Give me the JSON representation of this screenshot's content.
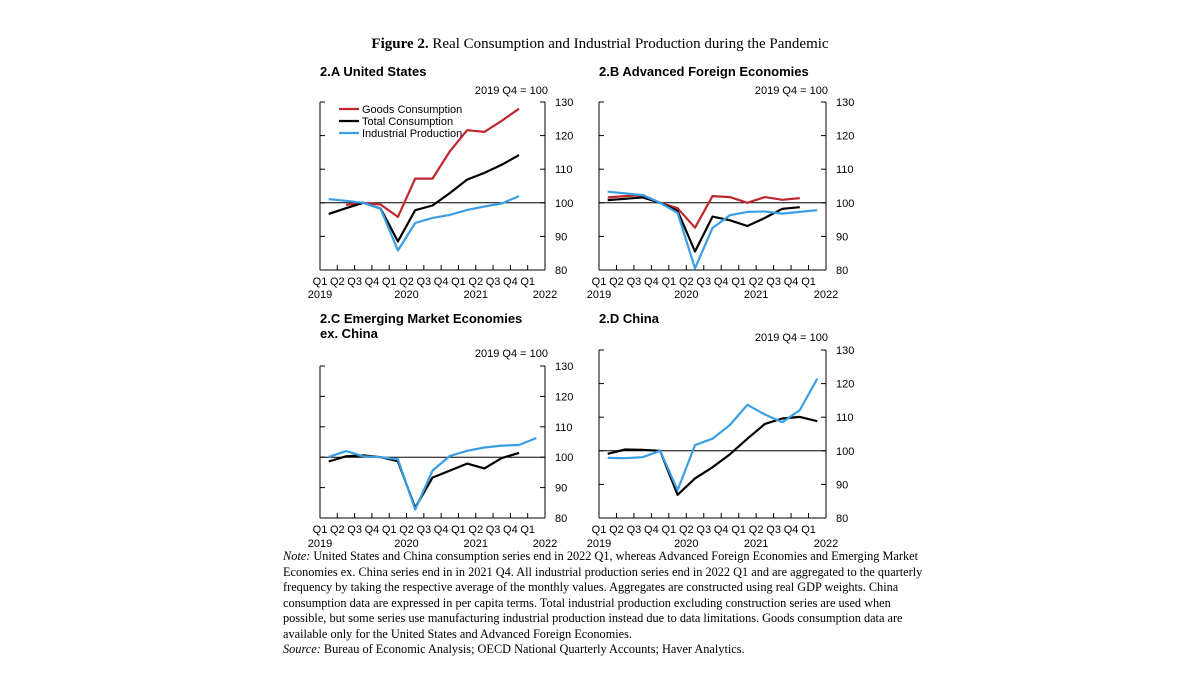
{
  "figure": {
    "label": "Figure 2.",
    "title": "Real Consumption and Industrial Production during the Pandemic"
  },
  "colors": {
    "goods": "#c0272d",
    "total": "#000000",
    "industrial": "#3a9ee4",
    "axis": "#000000"
  },
  "notes": {
    "note_label": "Note:",
    "note_text": "United States and China consumption series end in 2022 Q1, whereas Advanced Foreign Economies and Emerging Market Economies ex. China series end in in 2021 Q4. All industrial production series end in 2022 Q1 and are aggregated to the quarterly frequency by taking the respective average of the monthly values. Aggregates are constructed using real GDP weights. China consumption data are expressed in per capita terms. Total industrial production excluding construction series are used when possible, but some series use manufacturing industrial production instead due to data limitations. Goods consumption data are available only for the United States and Advanced Foreign Economies.",
    "source_label": "Source:",
    "source_text": "Bureau of Economic Analysis; OECD National Quarterly Accounts; Haver Analytics."
  },
  "chart_data": [
    {
      "type": "line",
      "title": "2.A United States",
      "unit_label": "2019 Q4 = 100",
      "x_ticks": [
        "Q1",
        "Q2",
        "Q3",
        "Q4",
        "Q1",
        "Q2",
        "Q3",
        "Q4",
        "Q1",
        "Q2",
        "Q3",
        "Q4",
        "Q1"
      ],
      "x_years": [
        {
          "label": "2019",
          "index": 0
        },
        {
          "label": "2020",
          "index": 5
        },
        {
          "label": "2021",
          "index": 9
        },
        {
          "label": "2022",
          "index": 13
        }
      ],
      "x": [
        "2019 Q2",
        "2019 Q3",
        "2019 Q4",
        "2020 Q1",
        "2020 Q2",
        "2020 Q3",
        "2020 Q4",
        "2021 Q1",
        "2021 Q2",
        "2021 Q3",
        "2021 Q4",
        "2022 Q1"
      ],
      "ylim": [
        80,
        130
      ],
      "y_ticks": [
        80,
        90,
        100,
        110,
        120,
        130
      ],
      "reference_line": 100,
      "legend": "top-left",
      "series": [
        {
          "name": "Goods Consumption",
          "color_key": "goods",
          "values": [
            null,
            99.4,
            100,
            99.5,
            95.8,
            107.2,
            107.2,
            115.3,
            121.6,
            121.1,
            124.4,
            128.0
          ]
        },
        {
          "name": "Total Consumption",
          "color_key": "total",
          "values": [
            96.7,
            98.4,
            100,
            98.3,
            88.5,
            97.8,
            99.2,
            102.9,
            106.9,
            108.9,
            111.3,
            114.2
          ]
        },
        {
          "name": "Industrial Production",
          "color_key": "industrial",
          "values": [
            101.1,
            100.6,
            100,
            98.2,
            85.8,
            94.0,
            95.5,
            96.4,
            97.9,
            98.9,
            99.8,
            102.0
          ]
        }
      ]
    },
    {
      "type": "line",
      "title": "2.B Advanced Foreign Economies",
      "unit_label": "2019 Q4 = 100",
      "x_ticks": [
        "Q1",
        "Q2",
        "Q3",
        "Q4",
        "Q1",
        "Q2",
        "Q3",
        "Q4",
        "Q1",
        "Q2",
        "Q3",
        "Q4",
        "Q1"
      ],
      "x_years": [
        {
          "label": "2019",
          "index": 0
        },
        {
          "label": "2020",
          "index": 5
        },
        {
          "label": "2021",
          "index": 9
        },
        {
          "label": "2022",
          "index": 13
        }
      ],
      "x": [
        "2019 Q1",
        "2019 Q2",
        "2019 Q3",
        "2019 Q4",
        "2020 Q1",
        "2020 Q2",
        "2020 Q3",
        "2020 Q4",
        "2021 Q1",
        "2021 Q2",
        "2021 Q3",
        "2021 Q4",
        "2022 Q1"
      ],
      "ylim": [
        80,
        130
      ],
      "y_ticks": [
        80,
        90,
        100,
        110,
        120,
        130
      ],
      "reference_line": 100,
      "series": [
        {
          "name": "Goods Consumption",
          "color_key": "goods",
          "values": [
            101.6,
            102.0,
            102.3,
            100.0,
            98.4,
            92.6,
            102.0,
            101.7,
            100.0,
            101.7,
            100.9,
            101.4,
            null
          ]
        },
        {
          "name": "Total Consumption",
          "color_key": "total",
          "values": [
            100.8,
            101.2,
            101.6,
            100.0,
            97.6,
            85.5,
            95.9,
            94.8,
            93.1,
            95.5,
            98.2,
            98.7,
            null
          ]
        },
        {
          "name": "Industrial Production",
          "color_key": "industrial",
          "values": [
            103.3,
            102.8,
            102.3,
            100.0,
            97.0,
            80.5,
            92.5,
            96.3,
            97.3,
            97.4,
            96.8,
            97.3,
            97.8
          ]
        }
      ]
    },
    {
      "type": "line",
      "title": "2.C Emerging Market Economies ex. China",
      "unit_label": "2019 Q4 = 100",
      "x_ticks": [
        "Q1",
        "Q2",
        "Q3",
        "Q4",
        "Q1",
        "Q2",
        "Q3",
        "Q4",
        "Q1",
        "Q2",
        "Q3",
        "Q4",
        "Q1"
      ],
      "x_years": [
        {
          "label": "2019",
          "index": 0
        },
        {
          "label": "2020",
          "index": 5
        },
        {
          "label": "2021",
          "index": 9
        },
        {
          "label": "2022",
          "index": 13
        }
      ],
      "x": [
        "2019 Q1",
        "2019 Q2",
        "2019 Q3",
        "2019 Q4",
        "2020 Q1",
        "2020 Q2",
        "2020 Q3",
        "2020 Q4",
        "2021 Q1",
        "2021 Q2",
        "2021 Q3",
        "2021 Q4",
        "2022 Q1"
      ],
      "ylim": [
        80,
        130
      ],
      "y_ticks": [
        80,
        90,
        100,
        110,
        120,
        130
      ],
      "reference_line": 100,
      "series": [
        {
          "name": "Total Consumption",
          "color_key": "total",
          "values": [
            98.6,
            100.3,
            100.6,
            100.0,
            98.7,
            83.4,
            93.3,
            95.6,
            97.9,
            96.3,
            99.7,
            101.4,
            null
          ]
        },
        {
          "name": "Industrial Production",
          "color_key": "industrial",
          "values": [
            100.1,
            102.0,
            100.3,
            100.0,
            99.3,
            82.8,
            95.6,
            100.4,
            102.1,
            103.2,
            103.8,
            104.0,
            106.3
          ]
        }
      ]
    },
    {
      "type": "line",
      "title": "2.D China",
      "unit_label": "2019 Q4 = 100",
      "x_ticks": [
        "Q1",
        "Q2",
        "Q3",
        "Q4",
        "Q1",
        "Q2",
        "Q3",
        "Q4",
        "Q1",
        "Q2",
        "Q3",
        "Q4",
        "Q1"
      ],
      "x_years": [
        {
          "label": "2019",
          "index": 0
        },
        {
          "label": "2020",
          "index": 5
        },
        {
          "label": "2021",
          "index": 9
        },
        {
          "label": "2022",
          "index": 13
        }
      ],
      "x": [
        "2019 Q1",
        "2019 Q2",
        "2019 Q3",
        "2019 Q4",
        "2020 Q1",
        "2020 Q2",
        "2020 Q3",
        "2020 Q4",
        "2021 Q1",
        "2021 Q2",
        "2021 Q3",
        "2021 Q4",
        "2022 Q1"
      ],
      "ylim": [
        80,
        130
      ],
      "y_ticks": [
        80,
        90,
        100,
        110,
        120,
        130
      ],
      "reference_line": 100,
      "series": [
        {
          "name": "Total Consumption",
          "color_key": "total",
          "values": [
            99.1,
            100.4,
            100.3,
            100.0,
            86.9,
            91.8,
            95.1,
            99.0,
            103.6,
            108.0,
            109.6,
            110.1,
            108.8
          ]
        },
        {
          "name": "Industrial Production",
          "color_key": "industrial",
          "values": [
            97.9,
            97.8,
            98.1,
            100.0,
            88.3,
            101.7,
            103.6,
            107.7,
            113.7,
            110.8,
            108.5,
            112.1,
            121.5
          ]
        }
      ]
    }
  ]
}
